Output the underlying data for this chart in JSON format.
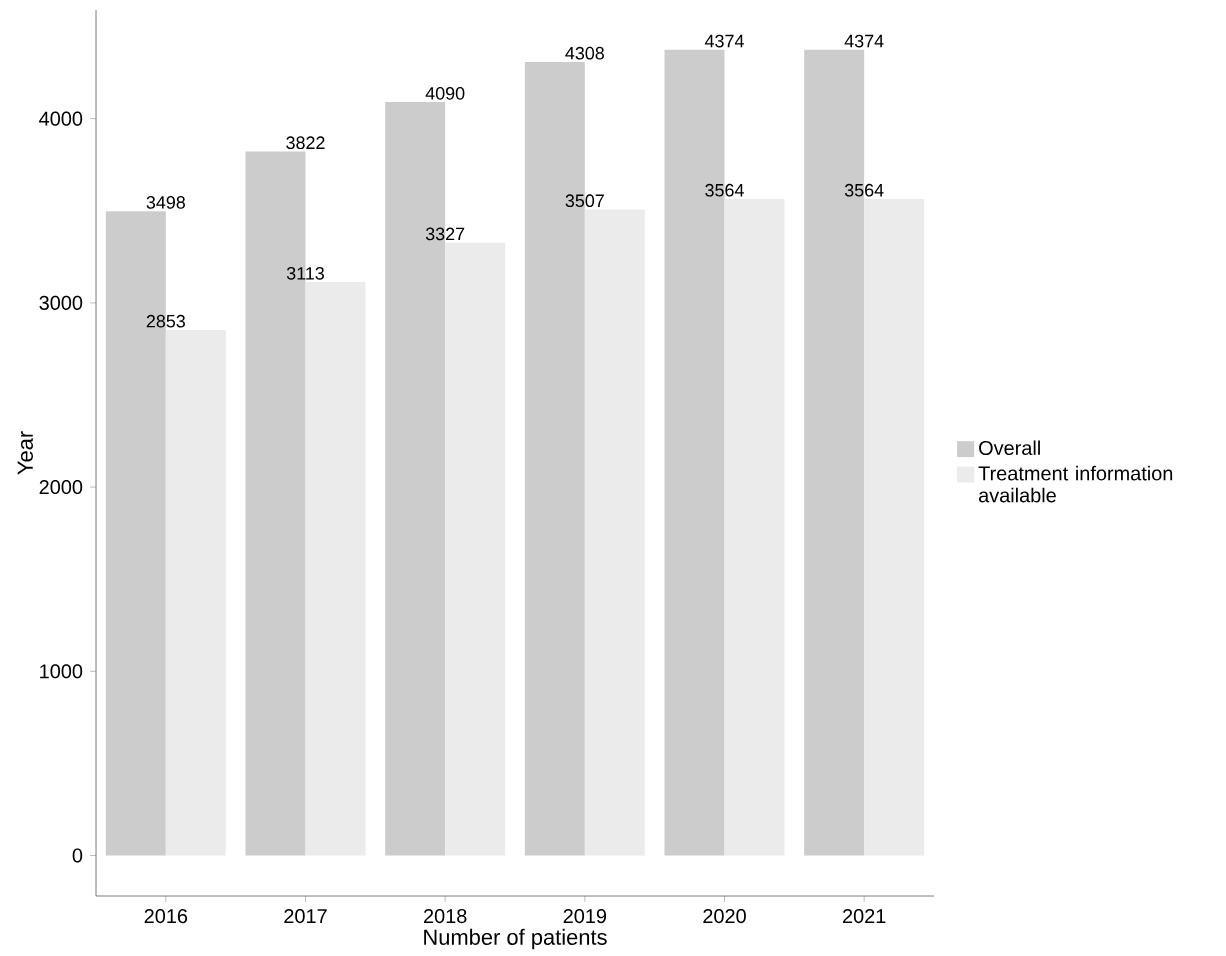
{
  "chart_data": {
    "type": "bar",
    "xlabel": "Number of patients",
    "ylabel": "Year",
    "categories": [
      "2016",
      "2017",
      "2018",
      "2019",
      "2020",
      "2021"
    ],
    "series": [
      {
        "name": "Overall",
        "color": "#cccccc",
        "values": [
          3498,
          3822,
          4090,
          4308,
          4374,
          4374
        ]
      },
      {
        "name": "Treatment information available",
        "color": "#ebebeb",
        "values": [
          2853,
          3113,
          3327,
          3507,
          3564,
          3564
        ]
      }
    ],
    "ylim": [
      -220,
      4590
    ],
    "yticks": [
      0,
      1000,
      2000,
      3000,
      4000
    ],
    "data_labels": true,
    "legend": "right",
    "grid": false
  }
}
